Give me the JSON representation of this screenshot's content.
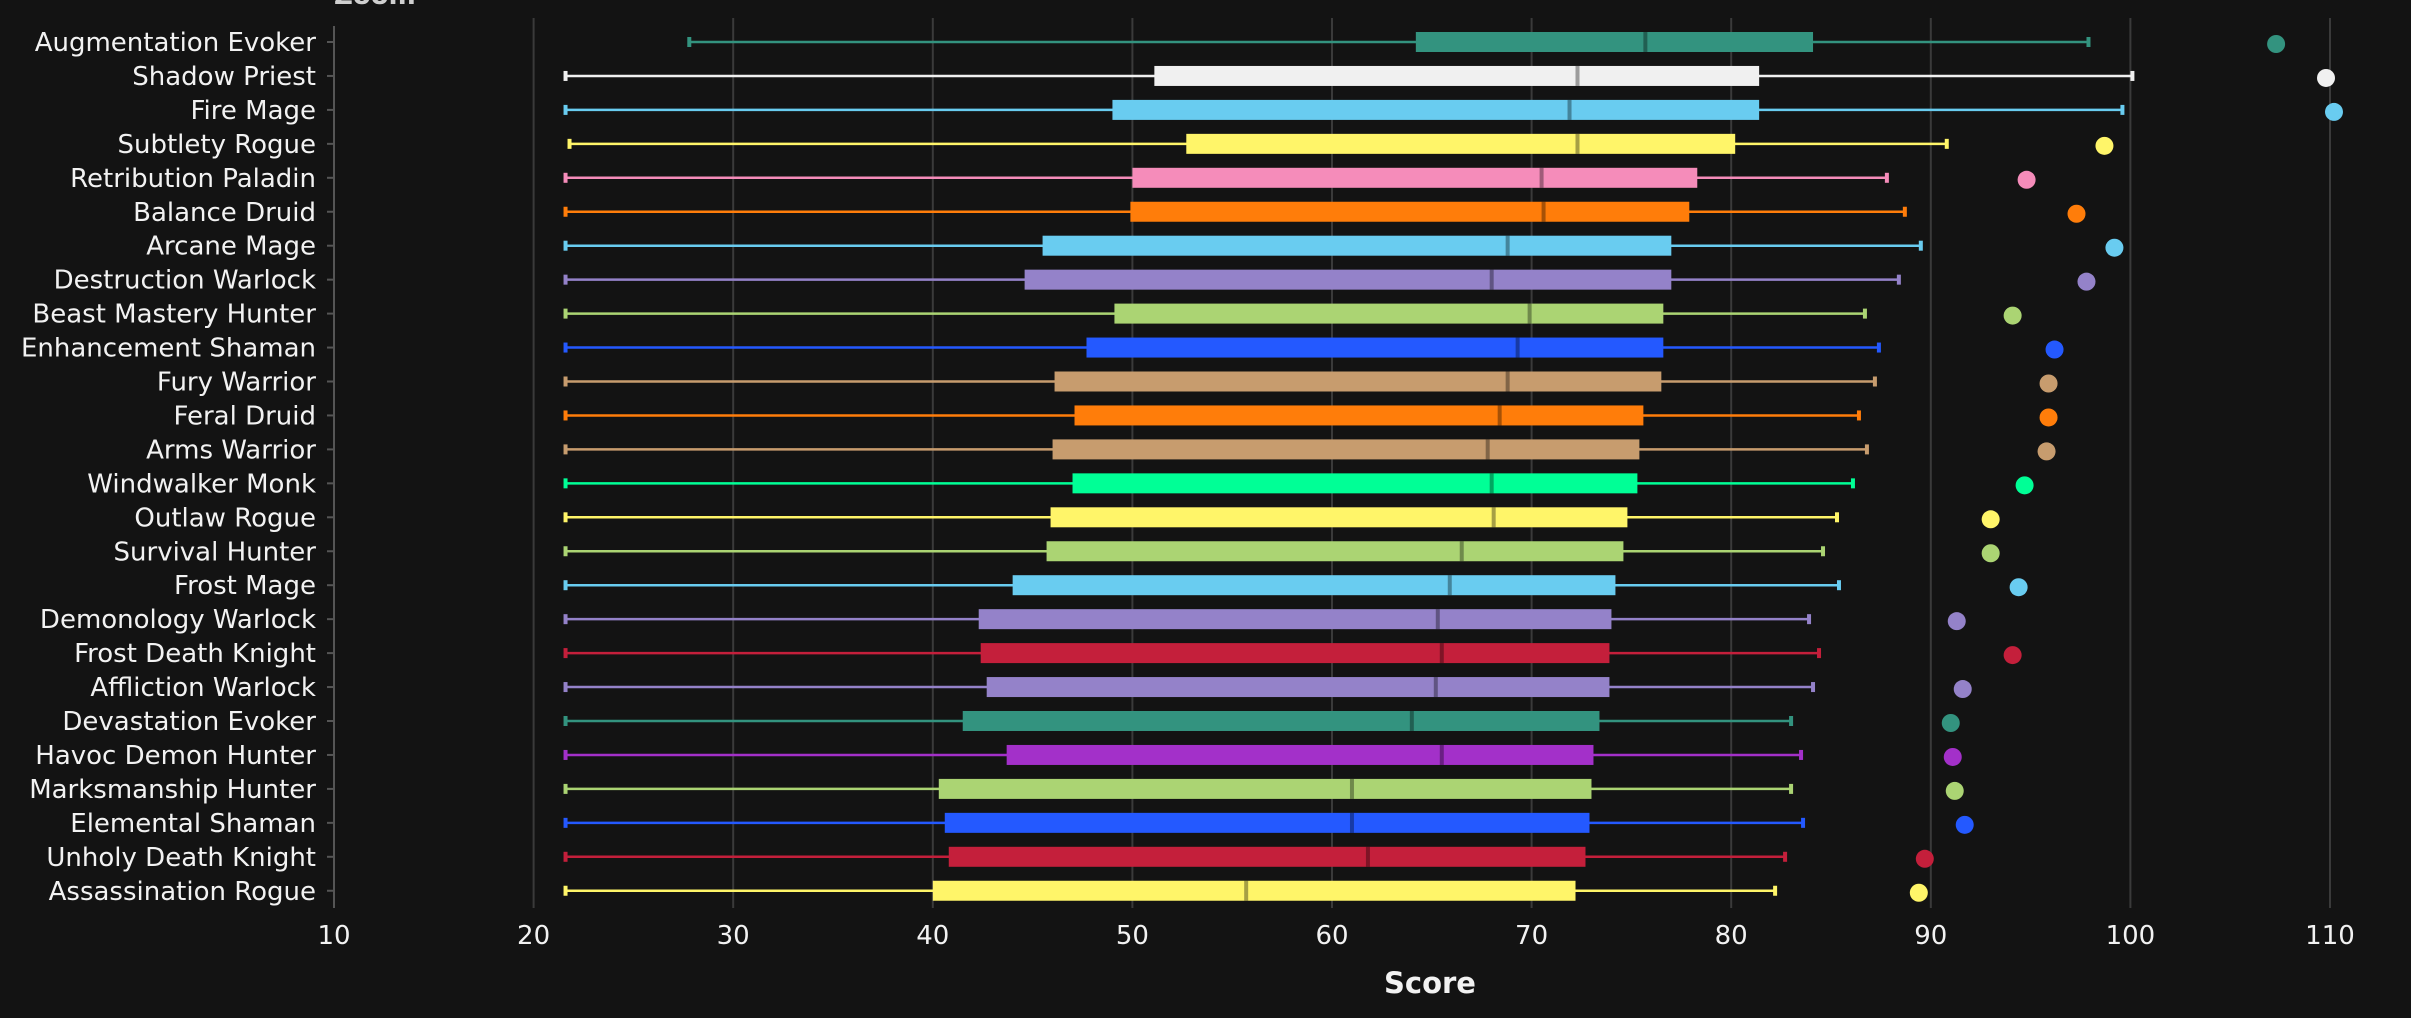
{
  "chart_data": {
    "type": "boxplot",
    "title": "Zoom",
    "xlabel": "Score",
    "ylabel": "",
    "xlim": [
      10,
      112
    ],
    "xticks": [
      10,
      20,
      30,
      40,
      50,
      60,
      70,
      80,
      90,
      100,
      110
    ],
    "grid": true,
    "legend": "none",
    "series": [
      {
        "name": "Augmentation Evoker",
        "color": "#33937f",
        "min": 27.8,
        "q1": 64.2,
        "median": 75.7,
        "q3": 84.1,
        "max": 97.9,
        "outlier": 107.3
      },
      {
        "name": "Shadow Priest",
        "color": "#f0f0f0",
        "min": 21.6,
        "q1": 51.1,
        "median": 72.3,
        "q3": 81.4,
        "max": 100.1,
        "outlier": 109.8
      },
      {
        "name": "Fire Mage",
        "color": "#69ccf0",
        "min": 21.6,
        "q1": 49.0,
        "median": 71.9,
        "q3": 81.4,
        "max": 99.6,
        "outlier": 110.2
      },
      {
        "name": "Subtlety Rogue",
        "color": "#fff569",
        "min": 21.8,
        "q1": 52.7,
        "median": 72.3,
        "q3": 80.2,
        "max": 90.8,
        "outlier": 98.7
      },
      {
        "name": "Retribution Paladin",
        "color": "#f58cba",
        "min": 21.6,
        "q1": 50.0,
        "median": 70.5,
        "q3": 78.3,
        "max": 87.8,
        "outlier": 94.8
      },
      {
        "name": "Balance Druid",
        "color": "#ff7d0a",
        "min": 21.6,
        "q1": 49.9,
        "median": 70.6,
        "q3": 77.9,
        "max": 88.7,
        "outlier": 97.3
      },
      {
        "name": "Arcane Mage",
        "color": "#69ccf0",
        "min": 21.6,
        "q1": 45.5,
        "median": 68.8,
        "q3": 77.0,
        "max": 89.5,
        "outlier": 99.2
      },
      {
        "name": "Destruction Warlock",
        "color": "#9482c9",
        "min": 21.6,
        "q1": 44.6,
        "median": 68.0,
        "q3": 77.0,
        "max": 88.4,
        "outlier": 97.8
      },
      {
        "name": "Beast Mastery Hunter",
        "color": "#abd473",
        "min": 21.6,
        "q1": 49.1,
        "median": 69.9,
        "q3": 76.6,
        "max": 86.7,
        "outlier": 94.1
      },
      {
        "name": "Enhancement Shaman",
        "color": "#2459ff",
        "min": 21.6,
        "q1": 47.7,
        "median": 69.3,
        "q3": 76.6,
        "max": 87.4,
        "outlier": 96.2
      },
      {
        "name": "Fury Warrior",
        "color": "#c79c6e",
        "min": 21.6,
        "q1": 46.1,
        "median": 68.8,
        "q3": 76.5,
        "max": 87.2,
        "outlier": 95.9
      },
      {
        "name": "Feral Druid",
        "color": "#ff7d0a",
        "min": 21.6,
        "q1": 47.1,
        "median": 68.4,
        "q3": 75.6,
        "max": 86.4,
        "outlier": 95.9
      },
      {
        "name": "Arms Warrior",
        "color": "#c79c6e",
        "min": 21.6,
        "q1": 46.0,
        "median": 67.8,
        "q3": 75.4,
        "max": 86.8,
        "outlier": 95.8
      },
      {
        "name": "Windwalker Monk",
        "color": "#00ff96",
        "min": 21.6,
        "q1": 47.0,
        "median": 68.0,
        "q3": 75.3,
        "max": 86.1,
        "outlier": 94.7
      },
      {
        "name": "Outlaw Rogue",
        "color": "#fff569",
        "min": 21.6,
        "q1": 45.9,
        "median": 68.1,
        "q3": 74.8,
        "max": 85.3,
        "outlier": 93.0
      },
      {
        "name": "Survival Hunter",
        "color": "#abd473",
        "min": 21.6,
        "q1": 45.7,
        "median": 66.5,
        "q3": 74.6,
        "max": 84.6,
        "outlier": 93.0
      },
      {
        "name": "Frost Mage",
        "color": "#69ccf0",
        "min": 21.6,
        "q1": 44.0,
        "median": 65.9,
        "q3": 74.2,
        "max": 85.4,
        "outlier": 94.4
      },
      {
        "name": "Demonology Warlock",
        "color": "#9482c9",
        "min": 21.6,
        "q1": 42.3,
        "median": 65.3,
        "q3": 74.0,
        "max": 83.9,
        "outlier": 91.3
      },
      {
        "name": "Frost Death Knight",
        "color": "#c41f3b",
        "min": 21.6,
        "q1": 42.4,
        "median": 65.5,
        "q3": 73.9,
        "max": 84.4,
        "outlier": 94.1
      },
      {
        "name": "Affliction Warlock",
        "color": "#9482c9",
        "min": 21.6,
        "q1": 42.7,
        "median": 65.2,
        "q3": 73.9,
        "max": 84.1,
        "outlier": 91.6
      },
      {
        "name": "Devastation Evoker",
        "color": "#33937f",
        "min": 21.6,
        "q1": 41.5,
        "median": 64.0,
        "q3": 73.4,
        "max": 83.0,
        "outlier": 91.0
      },
      {
        "name": "Havoc Demon Hunter",
        "color": "#a330c9",
        "min": 21.6,
        "q1": 43.7,
        "median": 65.5,
        "q3": 73.1,
        "max": 83.5,
        "outlier": 91.1
      },
      {
        "name": "Marksmanship Hunter",
        "color": "#abd473",
        "min": 21.6,
        "q1": 40.3,
        "median": 61.0,
        "q3": 73.0,
        "max": 83.0,
        "outlier": 91.2
      },
      {
        "name": "Elemental Shaman",
        "color": "#2459ff",
        "min": 21.6,
        "q1": 40.6,
        "median": 61.0,
        "q3": 72.9,
        "max": 83.6,
        "outlier": 91.7
      },
      {
        "name": "Unholy Death Knight",
        "color": "#c41f3b",
        "min": 21.6,
        "q1": 40.8,
        "median": 61.8,
        "q3": 72.7,
        "max": 82.7,
        "outlier": 89.7
      },
      {
        "name": "Assassination Rogue",
        "color": "#fff569",
        "min": 21.6,
        "q1": 40.0,
        "median": 55.7,
        "q3": 72.2,
        "max": 82.2,
        "outlier": 89.4
      }
    ]
  }
}
